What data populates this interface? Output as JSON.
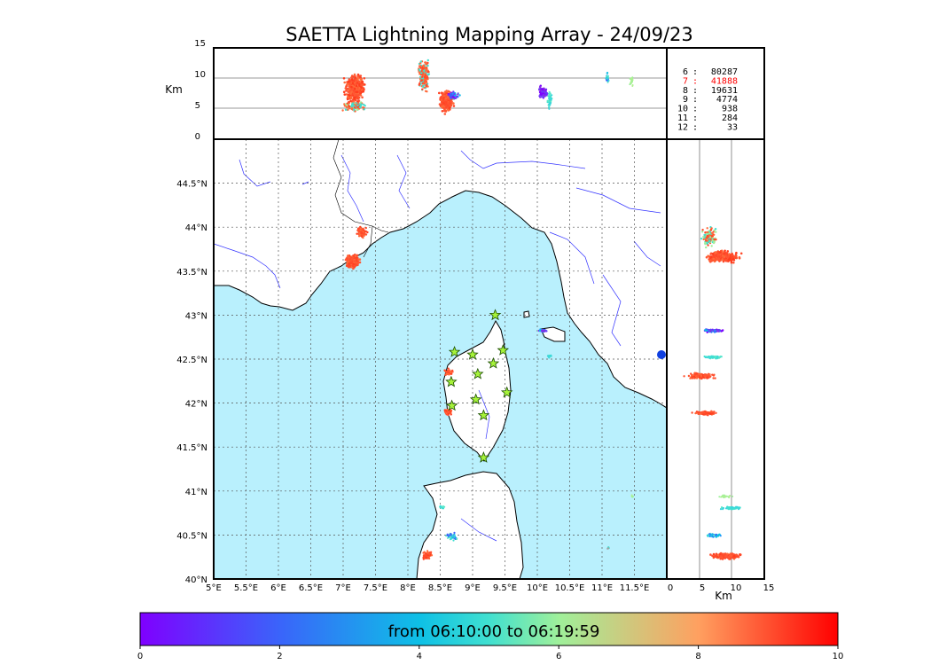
{
  "title": "SAETTA Lightning Mapping Array - 24/09/23",
  "colors": {
    "sea": "#b9f0fd",
    "land": "#ffffff",
    "river": "#3333ff",
    "coast": "#000000",
    "star_fill": "#a6f23a",
    "highlight": "#ff0000"
  },
  "altitude_panel": {
    "ylabel": "Km",
    "yticks": [
      "15",
      "10",
      "5",
      "0"
    ]
  },
  "side_panel": {
    "xlabel": "Km",
    "xticks": [
      "0",
      "5",
      "10",
      "15"
    ]
  },
  "map": {
    "lon_ticks": [
      "5°E",
      "5.5°E",
      "6°E",
      "6.5°E",
      "7°E",
      "7.5°E",
      "8°E",
      "8.5°E",
      "9°E",
      "9.5°E",
      "10°E",
      "10.5°E",
      "11°E",
      "11.5°E"
    ],
    "lat_ticks": [
      "44.5°N",
      "44°N",
      "43.5°N",
      "43°N",
      "42.5°N",
      "42°N",
      "41.5°N",
      "41°N",
      "40.5°N",
      "40°N"
    ],
    "lon_range": [
      5,
      12
    ],
    "lat_range": [
      40,
      45
    ]
  },
  "stats": [
    {
      "key": "6",
      "value": "80287",
      "highlight": false
    },
    {
      "key": "7",
      "value": "41888",
      "highlight": true
    },
    {
      "key": "8",
      "value": "19631",
      "highlight": false
    },
    {
      "key": "9",
      "value": "4774",
      "highlight": false
    },
    {
      "key": "10",
      "value": "938",
      "highlight": false
    },
    {
      "key": "11",
      "value": "284",
      "highlight": false
    },
    {
      "key": "12",
      "value": "33",
      "highlight": false
    }
  ],
  "colorbar": {
    "title": "from 06:10:00 to 06:19:59",
    "ticks": [
      "0",
      "2",
      "4",
      "6",
      "8",
      "10"
    ],
    "range": [
      0,
      10
    ]
  },
  "stations": [
    {
      "lon": 9.35,
      "lat": 43.0
    },
    {
      "lon": 8.72,
      "lat": 42.58
    },
    {
      "lon": 9.0,
      "lat": 42.55
    },
    {
      "lon": 9.47,
      "lat": 42.6
    },
    {
      "lon": 9.32,
      "lat": 42.45
    },
    {
      "lon": 9.08,
      "lat": 42.33
    },
    {
      "lon": 8.67,
      "lat": 42.24
    },
    {
      "lon": 9.53,
      "lat": 42.12
    },
    {
      "lon": 9.05,
      "lat": 42.04
    },
    {
      "lon": 8.68,
      "lat": 41.97
    },
    {
      "lon": 9.17,
      "lat": 41.86
    },
    {
      "lon": 9.17,
      "lat": 41.38
    }
  ]
}
